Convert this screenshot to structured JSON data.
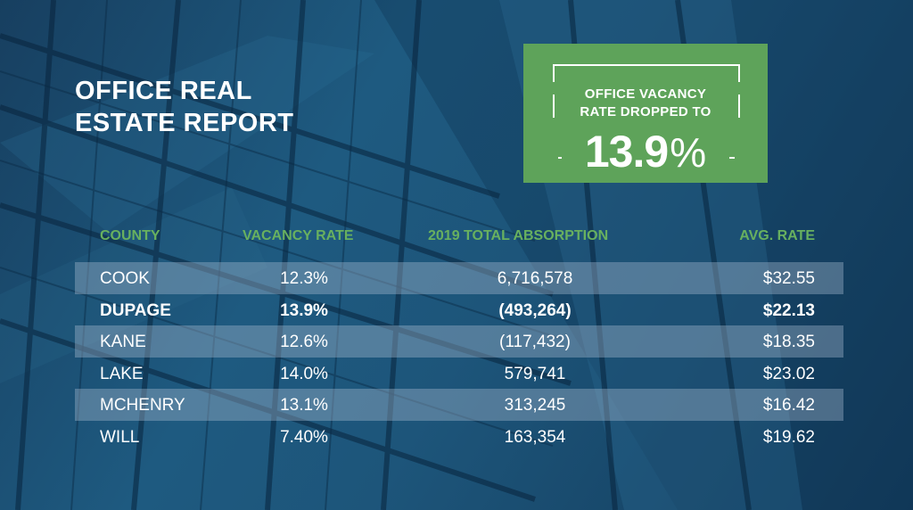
{
  "title": {
    "line1": "OFFICE REAL",
    "line2": "ESTATE REPORT"
  },
  "callout": {
    "line1": "OFFICE VACANCY",
    "line2": "RATE DROPPED TO",
    "value": "13.9",
    "unit": "%"
  },
  "colors": {
    "accent_green": "#5ea35a",
    "header_green": "#68b05f",
    "background_blue": "#1e5a80"
  },
  "table": {
    "headers": {
      "county": "COUNTY",
      "vacancy_rate": "VACANCY RATE",
      "absorption": "2019 TOTAL ABSORPTION",
      "avg_rate": "AVG. RATE"
    },
    "rows": [
      {
        "county": "COOK",
        "vacancy_rate": "12.3%",
        "absorption": "6,716,578",
        "avg_rate": "$32.55"
      },
      {
        "county": "DUPAGE",
        "vacancy_rate": "13.9%",
        "absorption": "(493,264)",
        "avg_rate": "$22.13"
      },
      {
        "county": "KANE",
        "vacancy_rate": "12.6%",
        "absorption": "(117,432)",
        "avg_rate": "$18.35"
      },
      {
        "county": "LAKE",
        "vacancy_rate": "14.0%",
        "absorption": "579,741",
        "avg_rate": "$23.02"
      },
      {
        "county": "MCHENRY",
        "vacancy_rate": "13.1%",
        "absorption": "313,245",
        "avg_rate": "$16.42"
      },
      {
        "county": "WILL",
        "vacancy_rate": "7.40%",
        "absorption": "163,354",
        "avg_rate": "$19.62"
      }
    ]
  }
}
